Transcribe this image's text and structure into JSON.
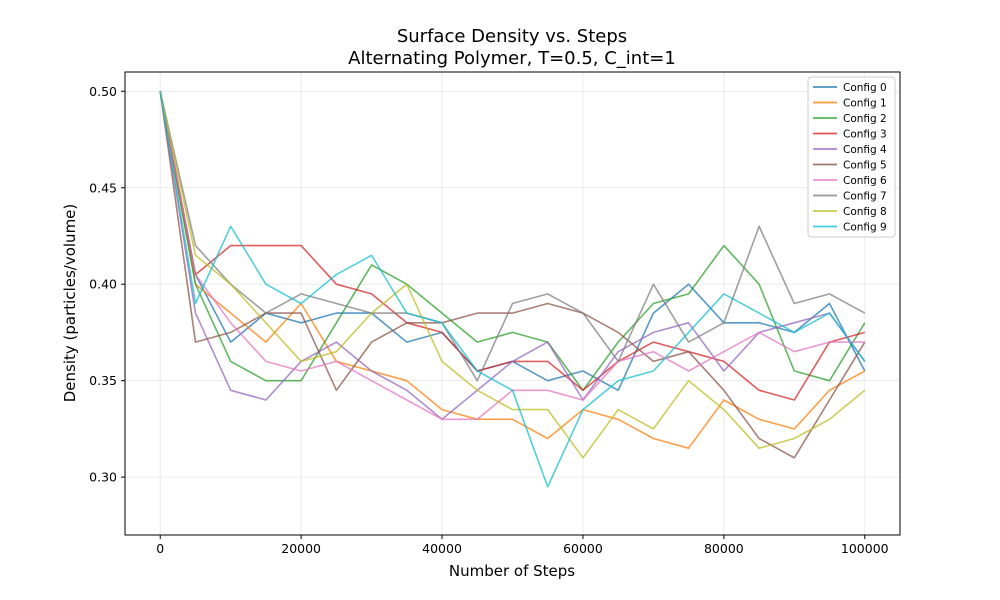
{
  "chart_data": {
    "type": "line",
    "title": "Surface Density vs. Steps",
    "subtitle": "Alternating Polymer, T=0.5, C_int=1",
    "xlabel": "Number of Steps",
    "ylabel": "Density (particles/volume)",
    "xlim": [
      -5000,
      105000
    ],
    "ylim": [
      0.27,
      0.51
    ],
    "xticks": [
      0,
      20000,
      40000,
      60000,
      80000,
      100000
    ],
    "xtick_labels": [
      "0",
      "20000",
      "40000",
      "60000",
      "80000",
      "100000"
    ],
    "yticks": [
      0.3,
      0.35,
      0.4,
      0.45,
      0.5
    ],
    "ytick_labels": [
      "0.30",
      "0.35",
      "0.40",
      "0.45",
      "0.50"
    ],
    "grid": true,
    "legend_position": "top-right",
    "x": [
      0,
      5000,
      10000,
      15000,
      20000,
      25000,
      30000,
      35000,
      40000,
      45000,
      50000,
      55000,
      60000,
      65000,
      70000,
      75000,
      80000,
      85000,
      90000,
      95000,
      100000
    ],
    "series": [
      {
        "name": "Config 0",
        "color": "#1f77b4",
        "values": [
          0.5,
          0.405,
          0.37,
          0.385,
          0.38,
          0.385,
          0.385,
          0.37,
          0.375,
          0.355,
          0.36,
          0.35,
          0.355,
          0.345,
          0.385,
          0.4,
          0.38,
          0.38,
          0.375,
          0.39,
          0.355
        ]
      },
      {
        "name": "Config 1",
        "color": "#ff7f0e",
        "values": [
          0.5,
          0.4,
          0.385,
          0.37,
          0.39,
          0.36,
          0.355,
          0.35,
          0.335,
          0.33,
          0.33,
          0.32,
          0.335,
          0.33,
          0.32,
          0.315,
          0.34,
          0.33,
          0.325,
          0.345,
          0.355
        ]
      },
      {
        "name": "Config 2",
        "color": "#2ca02c",
        "values": [
          0.5,
          0.4,
          0.36,
          0.35,
          0.35,
          0.38,
          0.41,
          0.4,
          0.385,
          0.37,
          0.375,
          0.37,
          0.345,
          0.37,
          0.39,
          0.395,
          0.42,
          0.4,
          0.355,
          0.35,
          0.38
        ]
      },
      {
        "name": "Config 3",
        "color": "#d62728",
        "values": [
          0.5,
          0.405,
          0.42,
          0.42,
          0.42,
          0.4,
          0.395,
          0.38,
          0.375,
          0.355,
          0.36,
          0.36,
          0.345,
          0.36,
          0.37,
          0.365,
          0.36,
          0.345,
          0.34,
          0.37,
          0.375
        ]
      },
      {
        "name": "Config 4",
        "color": "#9467bd",
        "values": [
          0.5,
          0.385,
          0.345,
          0.34,
          0.36,
          0.37,
          0.355,
          0.345,
          0.33,
          0.345,
          0.36,
          0.37,
          0.34,
          0.365,
          0.375,
          0.38,
          0.355,
          0.375,
          0.38,
          0.385,
          0.36
        ]
      },
      {
        "name": "Config 5",
        "color": "#8c564b",
        "values": [
          0.5,
          0.37,
          0.375,
          0.385,
          0.385,
          0.345,
          0.37,
          0.38,
          0.38,
          0.385,
          0.385,
          0.39,
          0.385,
          0.375,
          0.36,
          0.365,
          0.345,
          0.32,
          0.31,
          0.34,
          0.37
        ]
      },
      {
        "name": "Config 6",
        "color": "#e377c2",
        "values": [
          0.5,
          0.405,
          0.38,
          0.36,
          0.355,
          0.36,
          0.35,
          0.34,
          0.33,
          0.33,
          0.345,
          0.345,
          0.34,
          0.36,
          0.365,
          0.355,
          0.365,
          0.375,
          0.365,
          0.37,
          0.37
        ]
      },
      {
        "name": "Config 7",
        "color": "#7f7f7f",
        "values": [
          0.5,
          0.42,
          0.4,
          0.385,
          0.395,
          0.39,
          0.385,
          0.385,
          0.38,
          0.35,
          0.39,
          0.395,
          0.385,
          0.36,
          0.4,
          0.37,
          0.38,
          0.43,
          0.39,
          0.395,
          0.385
        ]
      },
      {
        "name": "Config 8",
        "color": "#bcbd22",
        "values": [
          0.5,
          0.415,
          0.4,
          0.38,
          0.36,
          0.365,
          0.385,
          0.4,
          0.36,
          0.345,
          0.335,
          0.335,
          0.31,
          0.335,
          0.325,
          0.35,
          0.335,
          0.315,
          0.32,
          0.33,
          0.345
        ]
      },
      {
        "name": "Config 9",
        "color": "#17becf",
        "values": [
          0.5,
          0.39,
          0.43,
          0.4,
          0.39,
          0.405,
          0.415,
          0.385,
          0.38,
          0.355,
          0.345,
          0.295,
          0.335,
          0.35,
          0.355,
          0.375,
          0.395,
          0.385,
          0.375,
          0.385,
          0.36
        ]
      }
    ]
  }
}
